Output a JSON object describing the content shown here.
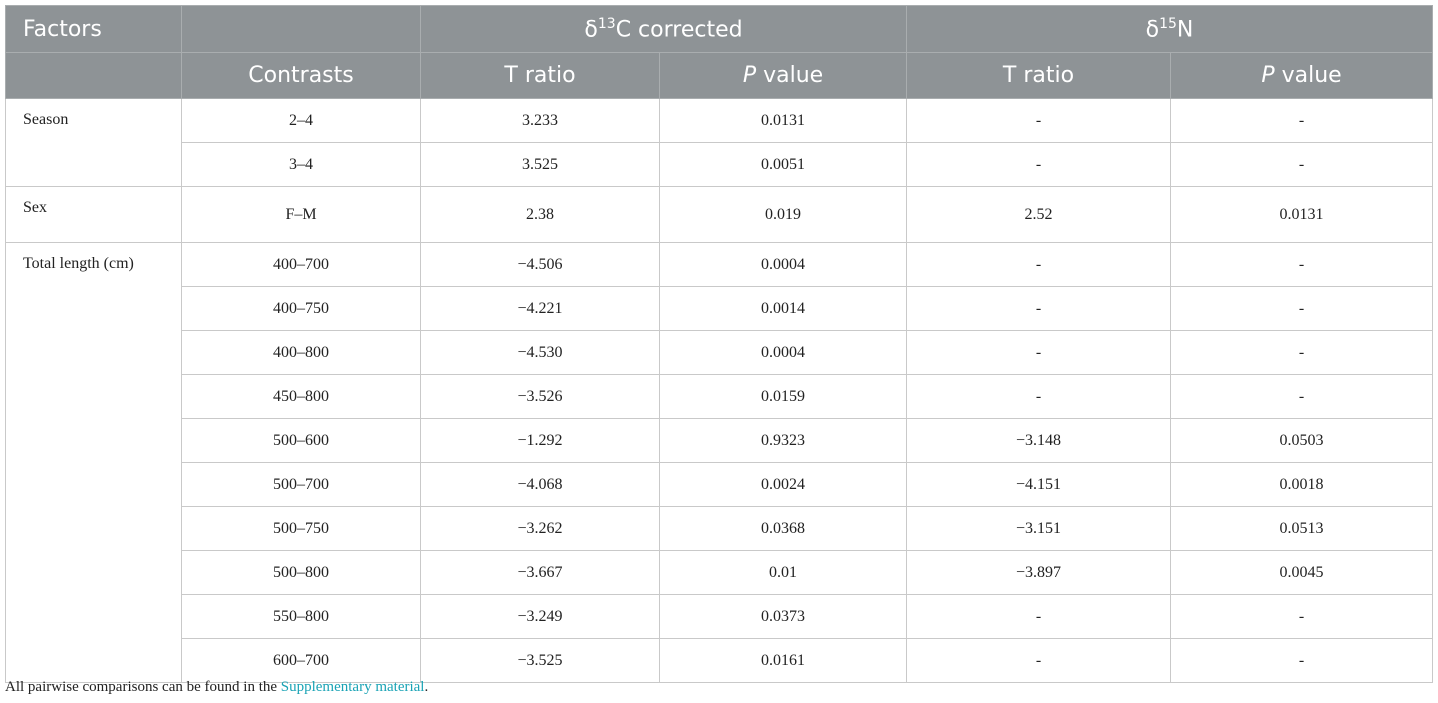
{
  "header": {
    "factors": "Factors",
    "carbon": {
      "prefix": "δ",
      "sup": "13",
      "suffix": "C corrected"
    },
    "nitrogen": {
      "prefix": "δ",
      "sup": "15",
      "suffix": "N"
    },
    "contrasts": "Contrasts",
    "columns": [
      {
        "main": "T ratio"
      },
      {
        "italic": "P",
        "main": " value"
      },
      {
        "main": "T ratio"
      },
      {
        "italic": "P",
        "main": " value"
      }
    ]
  },
  "groups": [
    {
      "factor": "Season",
      "rows": [
        [
          "2–4",
          "3.233",
          "0.0131",
          "-",
          "-"
        ],
        [
          "3–4",
          "3.525",
          "0.0051",
          "-",
          "-"
        ]
      ]
    },
    {
      "factor": "Sex",
      "rows": [
        [
          "F–M",
          "2.38",
          "0.019",
          "2.52",
          "0.0131"
        ]
      ]
    },
    {
      "factor": "Total length (cm)",
      "rows": [
        [
          "400–700",
          "−4.506",
          "0.0004",
          "-",
          "-"
        ],
        [
          "400–750",
          "−4.221",
          "0.0014",
          "-",
          "-"
        ],
        [
          "400–800",
          "−4.530",
          "0.0004",
          "-",
          "-"
        ],
        [
          "450–800",
          "−3.526",
          "0.0159",
          "-",
          "-"
        ],
        [
          "500–600",
          "−1.292",
          "0.9323",
          "−3.148",
          "0.0503"
        ],
        [
          "500–700",
          "−4.068",
          "0.0024",
          "−4.151",
          "0.0018"
        ],
        [
          "500–750",
          "−3.262",
          "0.0368",
          "−3.151",
          "0.0513"
        ],
        [
          "500–800",
          "−3.667",
          "0.01",
          "−3.897",
          "0.0045"
        ],
        [
          "550–800",
          "−3.249",
          "0.0373",
          "-",
          "-"
        ],
        [
          "600–700",
          "−3.525",
          "0.0161",
          "-",
          "-"
        ]
      ]
    }
  ],
  "footnote": {
    "text": "All pairwise comparisons can be found in the ",
    "link": "Supplementary material",
    "end": "."
  }
}
